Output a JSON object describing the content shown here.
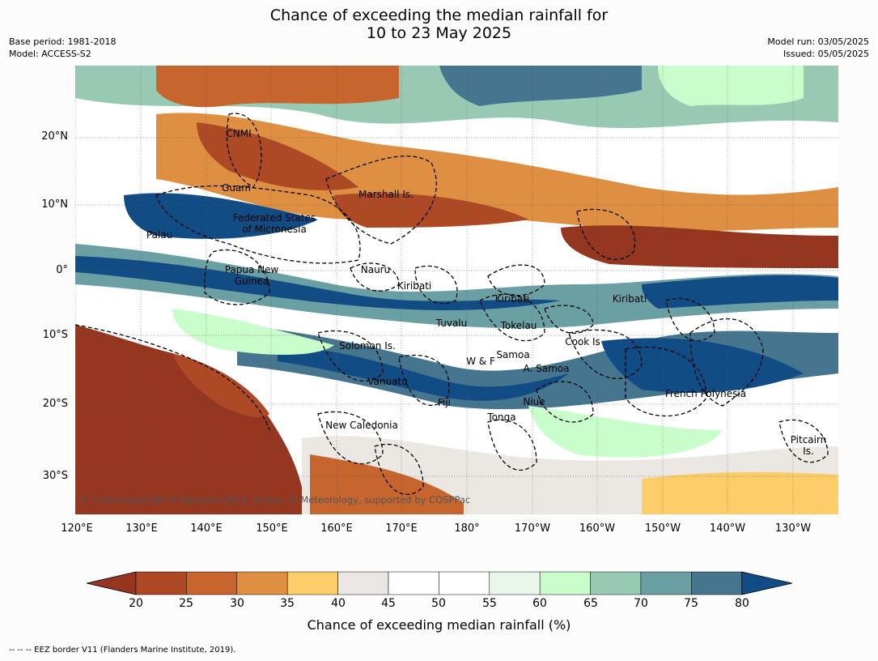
{
  "header": {
    "title_line1": "Chance of exceeding the median rainfall for",
    "title_line2": "10 to 23 May 2025",
    "base_period": "Base period: 1981-2018",
    "model": "Model: ACCESS-S2",
    "model_run": "Model run: 03/05/2025",
    "issued": "Issued: 05/05/2025"
  },
  "map": {
    "lat_ticks": [
      "20°N",
      "10°N",
      "0°",
      "10°S",
      "20°S",
      "30°S"
    ],
    "lon_ticks": [
      "120°E",
      "130°E",
      "140°E",
      "150°E",
      "160°E",
      "170°E",
      "180°",
      "170°W",
      "160°W",
      "150°W",
      "140°W",
      "130°W"
    ],
    "copyright": "© Commonwealth of Australia 2025, Bureau of Meteorology, supported by COSPPac",
    "regions": [
      {
        "name": "CNMI",
        "lines": [
          "CNMI"
        ]
      },
      {
        "name": "Guam",
        "lines": [
          "Guam"
        ]
      },
      {
        "name": "Marshall Is.",
        "lines": [
          "Marshall Is."
        ]
      },
      {
        "name": "Federated States of Micronesia",
        "lines": [
          "Federated States",
          "of Micronesia"
        ]
      },
      {
        "name": "Palau",
        "lines": [
          "Palau"
        ]
      },
      {
        "name": "Papua New Guinea",
        "lines": [
          "Papua New",
          "Guinea"
        ]
      },
      {
        "name": "Nauru",
        "lines": [
          "Nauru"
        ]
      },
      {
        "name": "Kiribati (west)",
        "lines": [
          "Kiribati"
        ]
      },
      {
        "name": "Kiribati (central)",
        "lines": [
          "Kiribati"
        ]
      },
      {
        "name": "Kiribati (east)",
        "lines": [
          "Kiribati"
        ]
      },
      {
        "name": "Tuvalu",
        "lines": [
          "Tuvalu"
        ]
      },
      {
        "name": "Tokelau",
        "lines": [
          "Tokelau"
        ]
      },
      {
        "name": "Cook Is",
        "lines": [
          "Cook Is"
        ]
      },
      {
        "name": "Solomon Is.",
        "lines": [
          "Solomon Is."
        ]
      },
      {
        "name": "Samoa",
        "lines": [
          "Samoa"
        ]
      },
      {
        "name": "W & F",
        "lines": [
          "W & F"
        ]
      },
      {
        "name": "A. Samoa",
        "lines": [
          "A. Samoa"
        ]
      },
      {
        "name": "Vanuatu",
        "lines": [
          "Vanuatu"
        ]
      },
      {
        "name": "Fiji",
        "lines": [
          "Fiji"
        ]
      },
      {
        "name": "Niue",
        "lines": [
          "Niue"
        ]
      },
      {
        "name": "Tonga",
        "lines": [
          "Tonga"
        ]
      },
      {
        "name": "New Caledonia",
        "lines": [
          "New Caledonia"
        ]
      },
      {
        "name": "French Polynesia",
        "lines": [
          "French Polynesia"
        ]
      },
      {
        "name": "Pitcairn Is.",
        "lines": [
          "Pitcairn",
          "Is."
        ]
      }
    ]
  },
  "colorbar": {
    "label": "Chance of exceeding median rainfall (%)",
    "ticks": [
      "20",
      "25",
      "30",
      "35",
      "40",
      "45",
      "50",
      "55",
      "60",
      "65",
      "70",
      "75",
      "80"
    ],
    "colors": {
      "below_20": "#953620",
      "20_25": "#ae4926",
      "25_30": "#c7652e",
      "30_35": "#de8f42",
      "35_40": "#fdcd6a",
      "40_45": "#ebe8e3",
      "45_50": "#ffffff",
      "50_55": "#ffffff",
      "55_60": "#e7f6e8",
      "60_65": "#c9fdcb",
      "65_70": "#97c9b3",
      "70_75": "#6aa0a4",
      "75_80": "#45758f",
      "above_80": "#124c84"
    }
  },
  "footnote": "-- -- -- EEZ border V11 (Flanders Marine Institute, 2019)."
}
